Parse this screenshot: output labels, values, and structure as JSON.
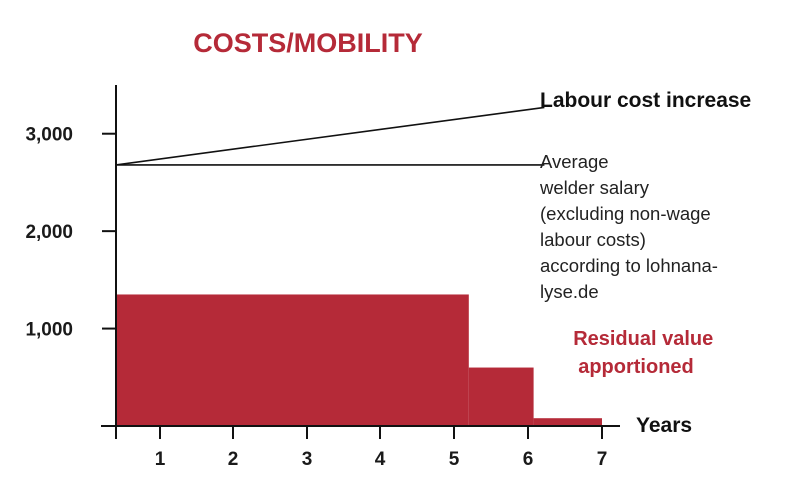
{
  "colors": {
    "accent": "#b52a38",
    "ink": "#111111"
  },
  "chart_data": {
    "type": "area",
    "title": "COSTS/MOBILITY",
    "xlabel": "Years",
    "ylabel": "",
    "x_ticks": [
      "1",
      "2",
      "3",
      "4",
      "5",
      "6",
      "7"
    ],
    "y_ticks": [
      "1,000",
      "2,000",
      "3,000"
    ],
    "y_tick_values": [
      1000,
      2000,
      3000
    ],
    "xlim": [
      0.25,
      7
    ],
    "ylim": [
      0,
      3500
    ],
    "grid": false,
    "series": [
      {
        "name": "Labour cost increase",
        "style": "line",
        "x": [
          0.25,
          6.2
        ],
        "y": [
          2680,
          3270
        ]
      },
      {
        "name": "Average welder salary (excluding non-wage labour costs) according to lohnanalyse.de",
        "label_lines": [
          "Average",
          "welder salary",
          "(excluding non-wage",
          "labour costs)",
          "according to lohnana-",
          "lyse.de"
        ],
        "style": "line",
        "x": [
          0.25,
          6.2
        ],
        "y": [
          2680,
          2680
        ]
      },
      {
        "name": "Residual value apportioned",
        "label_lines": [
          "Residual value",
          "apportioned"
        ],
        "style": "step-area",
        "segments": [
          {
            "x_start": 0.25,
            "x_end": 5.15,
            "value": 1350
          },
          {
            "x_start": 5.15,
            "x_end": 6.05,
            "value": 600
          },
          {
            "x_start": 6.05,
            "x_end": 7.0,
            "value": 80
          }
        ]
      }
    ]
  }
}
